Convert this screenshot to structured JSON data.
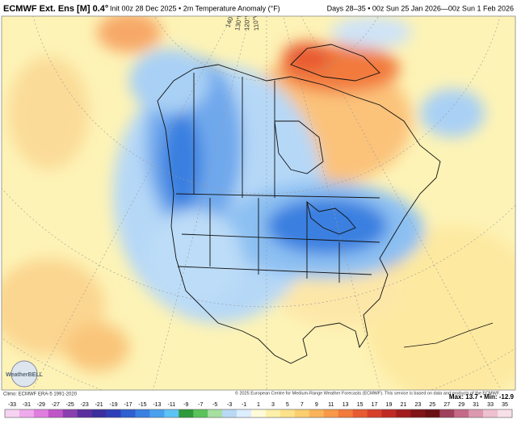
{
  "header": {
    "title": "ECMWF Ext. Ens [M] 0.4°",
    "subtitle": "Init 00z 28 Dec 2025 • 2m Temperature Anomaly (°F)",
    "valid": "Days 28–35 • 00z Sun 25 Jan 2026—00z Sun 1 Feb 2026"
  },
  "map": {
    "longitude_labels": [
      "140°W",
      "130°W",
      "120°W",
      "110°W"
    ],
    "logo": "WeatherBELL"
  },
  "footer": {
    "climo": "Climo: ECMWF ERA-5 1991-2020",
    "copyright": "© 2025 European Centre for Medium-Range Weather Forecasts (ECMWF). This service is based on data and products of the ECMWF.",
    "maxmin": "Max: 13.7 • Min: -12.9"
  },
  "colorbar": {
    "ticks": [
      -33,
      -31,
      -29,
      -27,
      -25,
      -23,
      -21,
      -19,
      -17,
      -15,
      -13,
      -11,
      -9,
      -7,
      -5,
      -3,
      -1,
      1,
      3,
      5,
      7,
      9,
      11,
      13,
      15,
      17,
      19,
      21,
      23,
      25,
      27,
      29,
      31,
      33,
      35
    ],
    "colors": [
      "#f7d3f2",
      "#eeaaec",
      "#e07ee0",
      "#c055c8",
      "#8a3fb0",
      "#5b2f9e",
      "#3b2f9e",
      "#2c3fb8",
      "#2f5fd0",
      "#3a80e0",
      "#4aa0ee",
      "#5cc3f5",
      "#2f9a3a",
      "#5cc25a",
      "#a6dfa0",
      "#b8d9f5",
      "#dceeff",
      "#fffbd9",
      "#fdf0a8",
      "#fde28a",
      "#fccf6e",
      "#f9b35a",
      "#f7984a",
      "#f27a3c",
      "#e85a30",
      "#d73f2a",
      "#c02a24",
      "#a01c1e",
      "#801418",
      "#6a1014",
      "#a0405a",
      "#c46a88",
      "#dc98b0",
      "#eec0d0",
      "#f8e0e8"
    ]
  }
}
